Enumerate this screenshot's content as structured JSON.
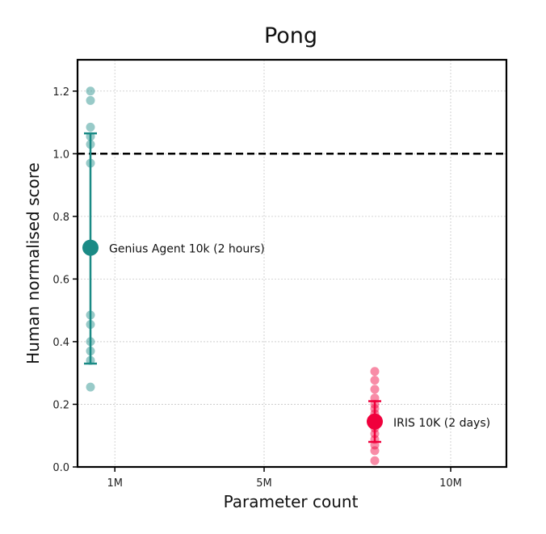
{
  "chart_data": {
    "type": "scatter",
    "title": "Pong",
    "xlabel": "Parameter count",
    "ylabel": "Human normalised score",
    "xlim": [
      0,
      11.5
    ],
    "ylim": [
      0,
      1.3
    ],
    "x_ticks": [
      {
        "value": 1,
        "label": "1M"
      },
      {
        "value": 5,
        "label": "5M"
      },
      {
        "value": 10,
        "label": "10M"
      }
    ],
    "y_ticks": [
      {
        "value": 0.0,
        "label": "0.0"
      },
      {
        "value": 0.2,
        "label": "0.2"
      },
      {
        "value": 0.4,
        "label": "0.4"
      },
      {
        "value": 0.6,
        "label": "0.6"
      },
      {
        "value": 0.8,
        "label": "0.8"
      },
      {
        "value": 1.0,
        "label": "1.0"
      },
      {
        "value": 1.2,
        "label": "1.2"
      }
    ],
    "grid": true,
    "reference_line": {
      "y": 1.0,
      "style": "dashed",
      "color": "#000000"
    },
    "series": [
      {
        "name": "Genius Agent 10k (2 hours)",
        "annotation": "Genius Agent 10k (2 hours)",
        "color": "#1a8a85",
        "x": 0.35,
        "mean": 0.7,
        "error_low": 0.33,
        "error_high": 1.065,
        "points": [
          1.2,
          1.17,
          1.085,
          1.055,
          1.03,
          0.97,
          0.485,
          0.455,
          0.4,
          0.37,
          0.34,
          0.255
        ]
      },
      {
        "name": "IRIS 10K (2 days)",
        "annotation": "IRIS 10K (2 days)",
        "color": "#f0003c",
        "x": 8.0,
        "mean": 0.145,
        "error_low": 0.08,
        "error_high": 0.21,
        "points": [
          0.305,
          0.277,
          0.248,
          0.22,
          0.2,
          0.186,
          0.17,
          0.124,
          0.106,
          0.088,
          0.07,
          0.052,
          0.02
        ]
      }
    ]
  }
}
